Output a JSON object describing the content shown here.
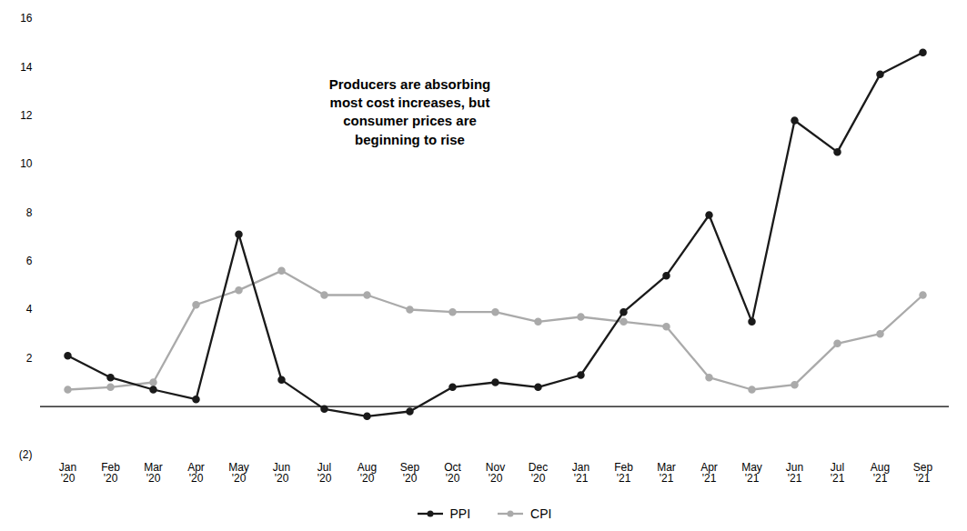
{
  "chart_data": {
    "type": "line",
    "categories": [
      "Jan\n'20",
      "Feb\n'20",
      "Mar\n'20",
      "Apr\n'20",
      "May\n'20",
      "Jun\n'20",
      "Jul\n'20",
      "Aug\n'20",
      "Sep\n'20",
      "Oct\n'20",
      "Nov\n'20",
      "Dec\n'20",
      "Jan\n'21",
      "Feb\n'21",
      "Mar\n'21",
      "Apr\n'21",
      "May\n'21",
      "Jun\n'21",
      "Jul\n'21",
      "Aug\n'21",
      "Sep\n'21"
    ],
    "series": [
      {
        "name": "PPI",
        "color": "#1a1a1a",
        "marker": "circle",
        "values": [
          2.1,
          1.2,
          0.7,
          0.3,
          7.1,
          1.1,
          -0.1,
          -0.4,
          -0.2,
          0.8,
          1.0,
          0.8,
          1.3,
          3.9,
          5.4,
          7.9,
          3.5,
          11.8,
          10.5,
          13.7,
          14.6
        ]
      },
      {
        "name": "CPI",
        "color": "#aaaaaa",
        "marker": "circle",
        "values": [
          0.7,
          0.8,
          1.0,
          4.2,
          4.8,
          5.6,
          4.6,
          4.6,
          4.0,
          3.9,
          3.9,
          3.5,
          3.7,
          3.5,
          3.3,
          1.2,
          0.7,
          0.9,
          2.6,
          3.0,
          4.6
        ]
      }
    ],
    "ylim": [
      -2,
      16
    ],
    "yticks": [
      {
        "value": -2,
        "label": "(2)"
      },
      2,
      4,
      6,
      8,
      10,
      12,
      14,
      16
    ],
    "annotations": [
      {
        "text": "Producers are absorbing\nmost cost increases, but\nconsumer prices are\nbeginning to rise",
        "x": "Sep\n'20",
        "y": 12.2,
        "color": "#9b1c2e"
      }
    ],
    "grid": false,
    "legend": "bottom"
  }
}
